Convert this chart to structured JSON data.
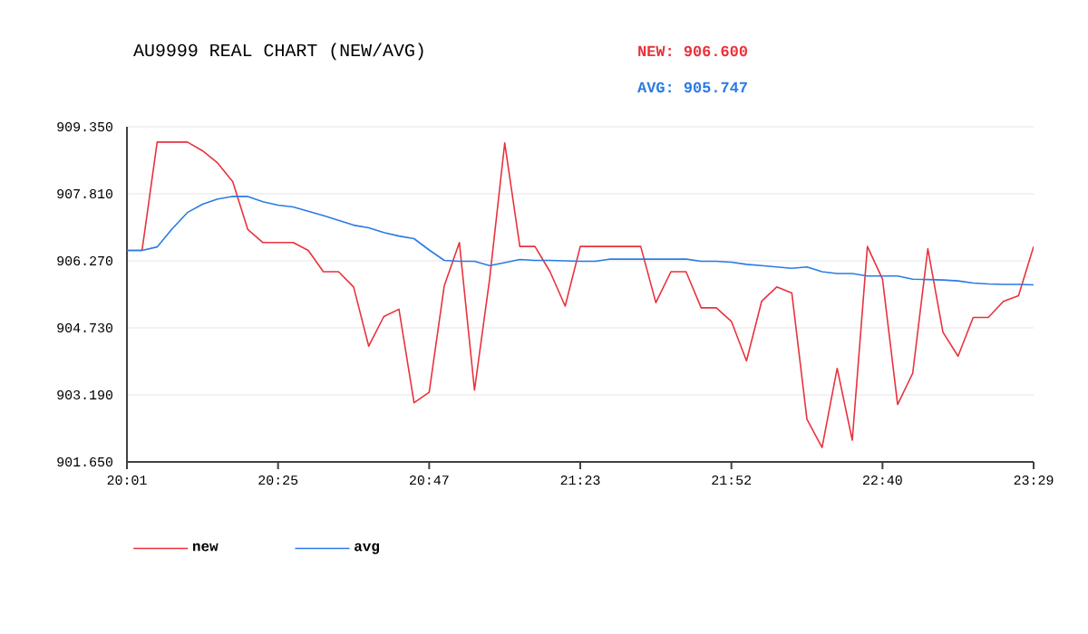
{
  "chart_data": {
    "type": "line",
    "title": "AU9999 REAL CHART (NEW/AVG)",
    "annotations": [
      "NEW: 906.600",
      "AVG: 905.747"
    ],
    "categories": [
      "20:01",
      null,
      null,
      null,
      null,
      null,
      null,
      null,
      null,
      null,
      "20:25",
      null,
      null,
      null,
      null,
      null,
      null,
      null,
      null,
      null,
      "20:47",
      null,
      null,
      null,
      null,
      null,
      null,
      null,
      null,
      null,
      "21:23",
      null,
      null,
      null,
      null,
      null,
      null,
      null,
      null,
      null,
      "21:52",
      null,
      null,
      null,
      null,
      null,
      null,
      null,
      null,
      null,
      "22:40",
      null,
      null,
      null,
      null,
      null,
      null,
      null,
      null,
      null,
      "23:29"
    ],
    "series": [
      {
        "name": "new",
        "color": "#e8323c",
        "values": [
          906.51,
          906.51,
          909.0,
          909.0,
          909.0,
          908.8,
          908.52,
          908.09,
          906.99,
          906.69,
          906.69,
          906.69,
          906.51,
          906.02,
          906.02,
          905.67,
          904.31,
          904.99,
          905.16,
          903.01,
          903.25,
          905.7,
          906.69,
          903.3,
          905.85,
          908.98,
          906.6,
          906.6,
          906.02,
          905.23,
          906.6,
          906.6,
          906.6,
          906.6,
          906.6,
          905.31,
          906.02,
          906.02,
          905.19,
          905.19,
          904.88,
          903.97,
          905.34,
          905.67,
          905.53,
          902.63,
          901.98,
          903.8,
          902.15,
          906.6,
          905.85,
          902.97,
          903.69,
          906.55,
          904.63,
          904.08,
          904.97,
          904.97,
          905.34,
          905.47,
          906.6
        ]
      },
      {
        "name": "avg",
        "color": "#2a7be4",
        "values": [
          906.51,
          906.51,
          906.59,
          907.01,
          907.38,
          907.57,
          907.69,
          907.75,
          907.75,
          907.63,
          907.55,
          907.51,
          907.41,
          907.31,
          907.2,
          907.09,
          907.03,
          906.92,
          906.84,
          906.78,
          906.52,
          906.28,
          906.26,
          906.26,
          906.16,
          906.23,
          906.3,
          906.28,
          906.28,
          906.27,
          906.26,
          906.26,
          906.31,
          906.31,
          906.31,
          906.31,
          906.31,
          906.31,
          906.26,
          906.26,
          906.24,
          906.19,
          906.16,
          906.13,
          906.1,
          906.13,
          906.02,
          905.98,
          905.98,
          905.92,
          905.92,
          905.92,
          905.85,
          905.84,
          905.83,
          905.81,
          905.76,
          905.74,
          905.73,
          905.73,
          905.72
        ]
      }
    ],
    "ylim": [
      901.65,
      909.35
    ],
    "yticks": [
      {
        "value": 901.65,
        "label": "901.650"
      },
      {
        "value": 903.19,
        "label": "903.190"
      },
      {
        "value": 904.73,
        "label": "904.730"
      },
      {
        "value": 906.27,
        "label": "906.270"
      },
      {
        "value": 907.81,
        "label": "907.810"
      },
      {
        "value": 909.35,
        "label": "909.350"
      }
    ],
    "grid": "y",
    "legend": "bottom",
    "marker": "none",
    "line_style": "solid"
  }
}
